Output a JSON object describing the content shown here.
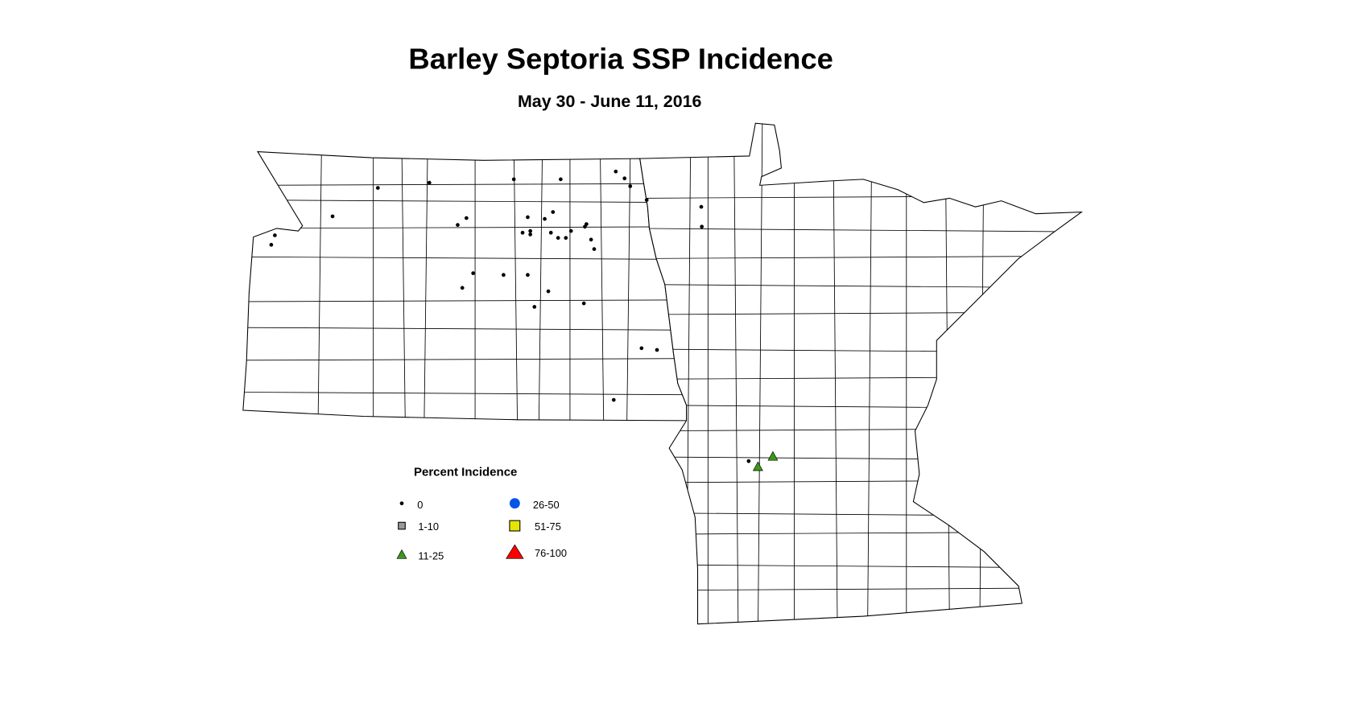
{
  "title": "Barley Septoria SSP Incidence",
  "subtitle": "May 30 - June 11, 2016",
  "legend": {
    "title": "Percent Incidence",
    "classes": [
      {
        "label": "0",
        "symbol": "dot",
        "color": "#000000"
      },
      {
        "label": "1-10",
        "symbol": "square",
        "color": "#999999"
      },
      {
        "label": "11-25",
        "symbol": "triangle",
        "color": "#3a9a1a"
      },
      {
        "label": "26-50",
        "symbol": "circle",
        "color": "#0055e6"
      },
      {
        "label": "51-75",
        "symbol": "square",
        "color": "#e6e600"
      },
      {
        "label": "76-100",
        "symbol": "triangle",
        "color": "#ff0000"
      }
    ]
  },
  "sites": [
    {
      "lon": -101.7,
      "lat": 48.62,
      "class": "0"
    },
    {
      "lon": -100.7,
      "lat": 48.68,
      "class": "0"
    },
    {
      "lon": -99.06,
      "lat": 48.72,
      "class": "0"
    },
    {
      "lon": -98.15,
      "lat": 48.72,
      "class": "0"
    },
    {
      "lon": -97.08,
      "lat": 48.81,
      "class": "0"
    },
    {
      "lon": -96.91,
      "lat": 48.73,
      "class": "0"
    },
    {
      "lon": -96.8,
      "lat": 48.64,
      "class": "0"
    },
    {
      "lon": -96.48,
      "lat": 48.48,
      "class": "0"
    },
    {
      "lon": -95.42,
      "lat": 48.4,
      "class": "0"
    },
    {
      "lon": -95.41,
      "lat": 48.17,
      "class": "0"
    },
    {
      "lon": -102.58,
      "lat": 48.29,
      "class": "0"
    },
    {
      "lon": -103.7,
      "lat": 48.07,
      "class": "0"
    },
    {
      "lon": -103.77,
      "lat": 47.96,
      "class": "0"
    },
    {
      "lon": -99.98,
      "lat": 48.27,
      "class": "0"
    },
    {
      "lon": -100.15,
      "lat": 48.19,
      "class": "0"
    },
    {
      "lon": -98.79,
      "lat": 48.28,
      "class": "0"
    },
    {
      "lon": -98.3,
      "lat": 48.34,
      "class": "0"
    },
    {
      "lon": -98.46,
      "lat": 48.26,
      "class": "0"
    },
    {
      "lon": -98.89,
      "lat": 48.1,
      "class": "0"
    },
    {
      "lon": -98.74,
      "lat": 48.12,
      "class": "0"
    },
    {
      "lon": -98.74,
      "lat": 48.08,
      "class": "0"
    },
    {
      "lon": -98.34,
      "lat": 48.1,
      "class": "0"
    },
    {
      "lon": -98.2,
      "lat": 48.04,
      "class": "0"
    },
    {
      "lon": -98.05,
      "lat": 48.04,
      "class": "0"
    },
    {
      "lon": -97.95,
      "lat": 48.12,
      "class": "0"
    },
    {
      "lon": -97.65,
      "lat": 48.2,
      "class": "0"
    },
    {
      "lon": -97.68,
      "lat": 48.17,
      "class": "0"
    },
    {
      "lon": -97.56,
      "lat": 48.02,
      "class": "0"
    },
    {
      "lon": -97.5,
      "lat": 47.91,
      "class": "0"
    },
    {
      "lon": -99.85,
      "lat": 47.63,
      "class": "0"
    },
    {
      "lon": -100.06,
      "lat": 47.46,
      "class": "0"
    },
    {
      "lon": -99.26,
      "lat": 47.61,
      "class": "0"
    },
    {
      "lon": -98.79,
      "lat": 47.61,
      "class": "0"
    },
    {
      "lon": -98.39,
      "lat": 47.42,
      "class": "0"
    },
    {
      "lon": -98.66,
      "lat": 47.24,
      "class": "0"
    },
    {
      "lon": -97.7,
      "lat": 47.28,
      "class": "0"
    },
    {
      "lon": -96.58,
      "lat": 46.76,
      "class": "0"
    },
    {
      "lon": -96.28,
      "lat": 46.74,
      "class": "0"
    },
    {
      "lon": -97.12,
      "lat": 46.16,
      "class": "0"
    },
    {
      "lon": -94.5,
      "lat": 45.45,
      "class": "0"
    },
    {
      "lon": -94.32,
      "lat": 45.38,
      "class": "11-25"
    },
    {
      "lon": -94.03,
      "lat": 45.5,
      "class": "11-25"
    }
  ]
}
